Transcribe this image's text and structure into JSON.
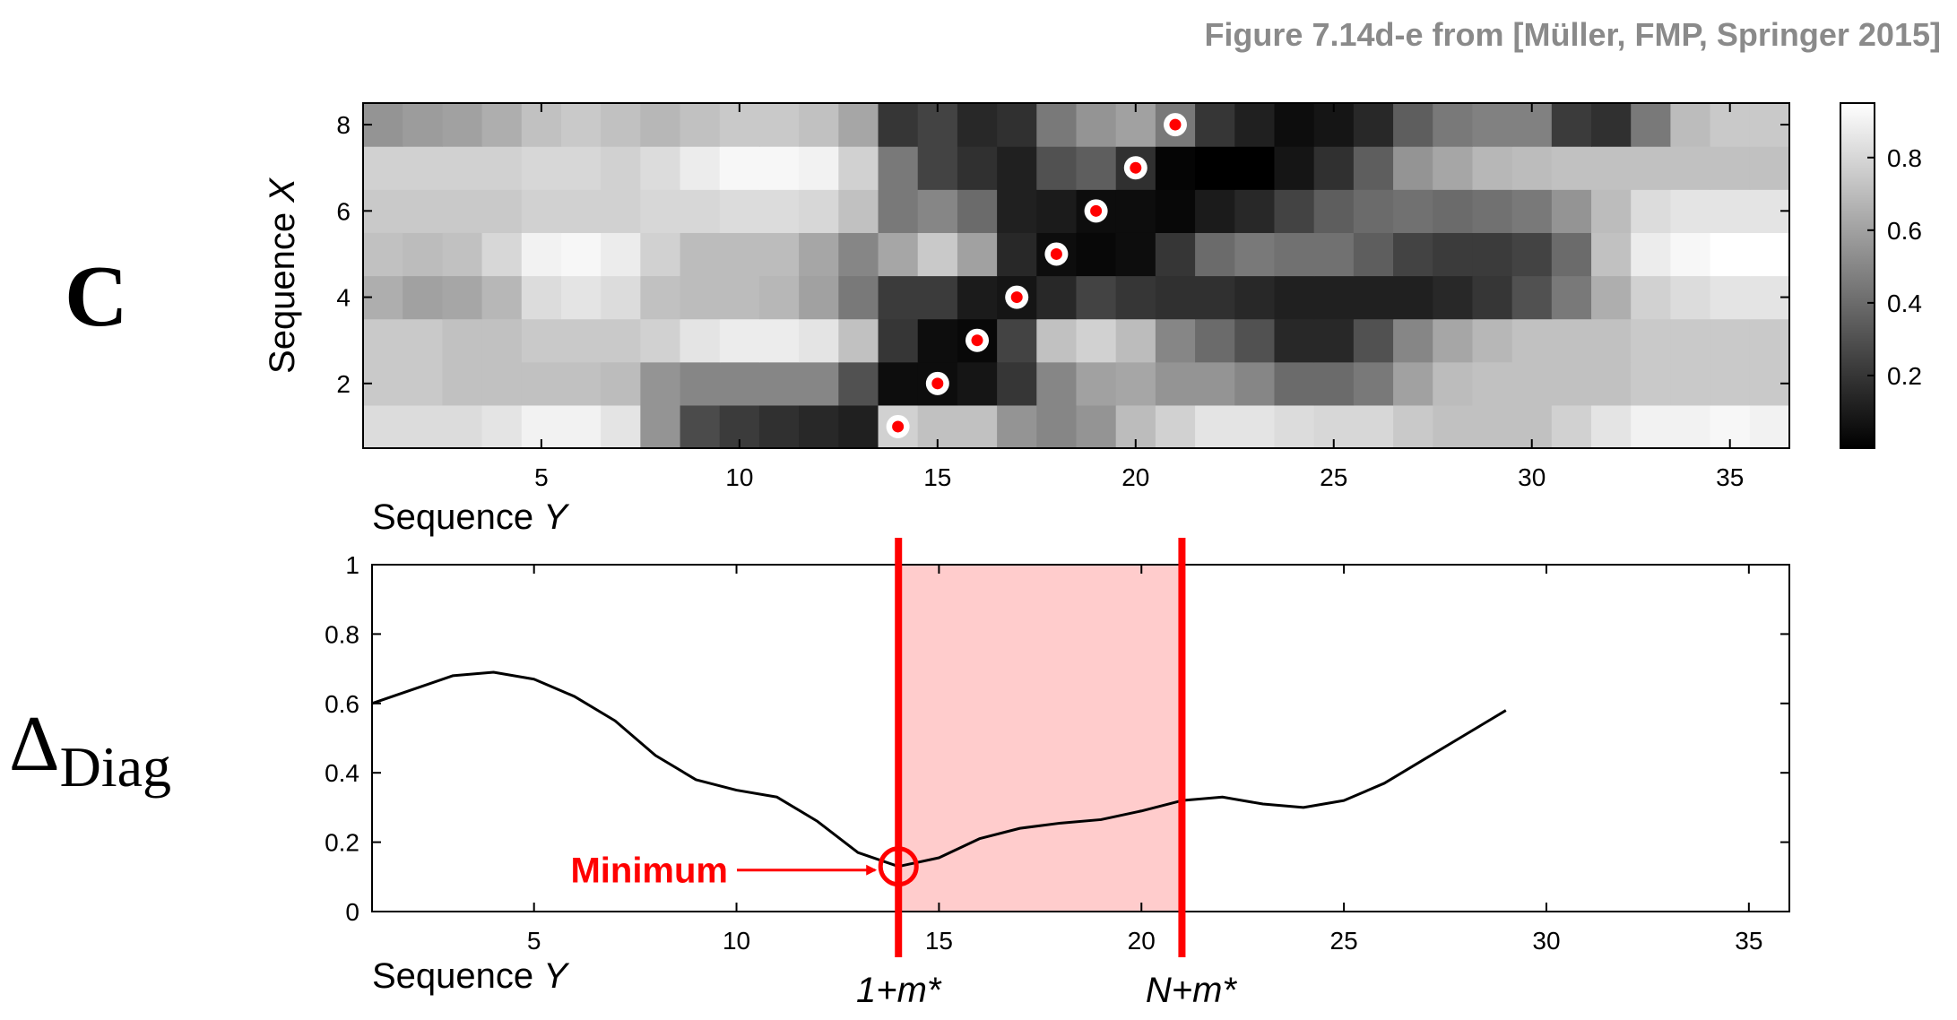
{
  "source_note": "Figure 7.14d-e from [Müller, FMP, Springer 2015]",
  "side_labels": {
    "top": "C",
    "bottom_symbol": "Δ",
    "bottom_subscript": "Diag"
  },
  "chart_data": [
    {
      "type": "heatmap",
      "xlabel": "Sequence",
      "xlabel_italic": "Y",
      "ylabel": "Sequence",
      "ylabel_italic": "X",
      "xlim": [
        0.5,
        36.5
      ],
      "ylim": [
        0.5,
        8.5
      ],
      "x_ticks": [
        5,
        10,
        15,
        20,
        25,
        30,
        35
      ],
      "y_ticks": [
        2,
        4,
        6,
        8
      ],
      "colorbar": {
        "ticks": [
          0.2,
          0.4,
          0.6,
          0.8
        ],
        "range": [
          0,
          0.95
        ],
        "colormap": "gray"
      },
      "rows": [
        [
          0.82,
          0.82,
          0.82,
          0.85,
          0.9,
          0.9,
          0.85,
          0.55,
          0.28,
          0.22,
          0.18,
          0.15,
          0.12,
          0.78,
          0.72,
          0.72,
          0.55,
          0.5,
          0.55,
          0.7,
          0.78,
          0.85,
          0.85,
          0.82,
          0.8,
          0.8,
          0.75,
          0.72,
          0.72,
          0.72,
          0.78,
          0.85,
          0.9,
          0.9,
          0.92,
          0.9
        ],
        [
          0.75,
          0.75,
          0.72,
          0.72,
          0.72,
          0.72,
          0.7,
          0.55,
          0.5,
          0.5,
          0.5,
          0.5,
          0.3,
          0.05,
          0.05,
          0.08,
          0.2,
          0.5,
          0.6,
          0.62,
          0.55,
          0.55,
          0.5,
          0.4,
          0.4,
          0.45,
          0.6,
          0.7,
          0.72,
          0.72,
          0.72,
          0.72,
          0.75,
          0.75,
          0.75,
          0.75
        ],
        [
          0.75,
          0.75,
          0.72,
          0.72,
          0.75,
          0.75,
          0.75,
          0.78,
          0.85,
          0.88,
          0.88,
          0.85,
          0.72,
          0.2,
          0.05,
          0.03,
          0.25,
          0.72,
          0.78,
          0.7,
          0.5,
          0.4,
          0.3,
          0.15,
          0.15,
          0.3,
          0.5,
          0.62,
          0.68,
          0.72,
          0.72,
          0.72,
          0.75,
          0.75,
          0.75,
          0.75
        ],
        [
          0.65,
          0.6,
          0.62,
          0.68,
          0.82,
          0.85,
          0.82,
          0.72,
          0.7,
          0.7,
          0.68,
          0.6,
          0.45,
          0.22,
          0.22,
          0.1,
          0.08,
          0.15,
          0.25,
          0.2,
          0.18,
          0.18,
          0.15,
          0.12,
          0.12,
          0.12,
          0.12,
          0.15,
          0.2,
          0.3,
          0.45,
          0.65,
          0.78,
          0.82,
          0.85,
          0.85
        ],
        [
          0.72,
          0.7,
          0.72,
          0.8,
          0.9,
          0.92,
          0.88,
          0.78,
          0.7,
          0.7,
          0.7,
          0.62,
          0.5,
          0.62,
          0.75,
          0.6,
          0.15,
          0.05,
          0.03,
          0.05,
          0.2,
          0.4,
          0.45,
          0.42,
          0.42,
          0.35,
          0.25,
          0.22,
          0.22,
          0.25,
          0.4,
          0.72,
          0.88,
          0.92,
          0.95,
          0.95
        ],
        [
          0.75,
          0.75,
          0.75,
          0.75,
          0.78,
          0.78,
          0.78,
          0.8,
          0.8,
          0.82,
          0.82,
          0.8,
          0.72,
          0.45,
          0.5,
          0.4,
          0.12,
          0.1,
          0.05,
          0.05,
          0.03,
          0.1,
          0.15,
          0.25,
          0.35,
          0.4,
          0.42,
          0.4,
          0.42,
          0.45,
          0.55,
          0.7,
          0.82,
          0.85,
          0.85,
          0.85
        ],
        [
          0.78,
          0.78,
          0.78,
          0.78,
          0.8,
          0.8,
          0.78,
          0.82,
          0.88,
          0.92,
          0.92,
          0.9,
          0.78,
          0.45,
          0.25,
          0.18,
          0.12,
          0.3,
          0.35,
          0.18,
          0.02,
          0.0,
          0.0,
          0.08,
          0.18,
          0.35,
          0.55,
          0.62,
          0.68,
          0.7,
          0.72,
          0.72,
          0.72,
          0.72,
          0.72,
          0.72
        ],
        [
          0.55,
          0.58,
          0.6,
          0.65,
          0.72,
          0.75,
          0.72,
          0.68,
          0.72,
          0.75,
          0.75,
          0.72,
          0.62,
          0.2,
          0.25,
          0.15,
          0.18,
          0.45,
          0.55,
          0.6,
          0.45,
          0.2,
          0.12,
          0.05,
          0.08,
          0.15,
          0.35,
          0.45,
          0.48,
          0.48,
          0.22,
          0.18,
          0.45,
          0.7,
          0.75,
          0.75
        ]
      ],
      "path_points": [
        [
          14,
          1
        ],
        [
          15,
          2
        ],
        [
          16,
          3
        ],
        [
          17,
          4
        ],
        [
          18,
          5
        ],
        [
          19,
          6
        ],
        [
          20,
          7
        ],
        [
          21,
          8
        ]
      ]
    },
    {
      "type": "line",
      "xlabel": "Sequence",
      "xlabel_italic": "Y",
      "xlim": [
        1,
        36
      ],
      "ylim": [
        0,
        1
      ],
      "x_ticks": [
        5,
        10,
        15,
        20,
        25,
        30,
        35
      ],
      "y_ticks": [
        0,
        0.2,
        0.4,
        0.6,
        0.8,
        1
      ],
      "y_tick_labels": [
        "0",
        "0.2",
        "0.4",
        "0.6",
        "0.8",
        "1"
      ],
      "x": [
        1,
        2,
        3,
        4,
        5,
        6,
        7,
        8,
        9,
        10,
        11,
        12,
        13,
        14,
        15,
        16,
        17,
        18,
        19,
        20,
        21,
        22,
        23,
        24,
        25,
        26,
        27,
        28,
        29
      ],
      "y": [
        0.6,
        0.64,
        0.68,
        0.69,
        0.67,
        0.62,
        0.55,
        0.45,
        0.38,
        0.35,
        0.33,
        0.26,
        0.17,
        0.13,
        0.155,
        0.21,
        0.24,
        0.255,
        0.265,
        0.29,
        0.32,
        0.33,
        0.31,
        0.3,
        0.32,
        0.37,
        0.44,
        0.51,
        0.58
      ],
      "minimum": {
        "x": 14,
        "y": 0.13,
        "label": "Minimum"
      },
      "highlight": {
        "x_start": 14,
        "x_end": 21,
        "color": "#ffcccc"
      },
      "markers": [
        {
          "x": 14,
          "label_main": "1+m",
          "label_star": "*"
        },
        {
          "x": 21,
          "label_main": "N+m",
          "label_star": "*"
        }
      ],
      "accent_color": "#ff0000"
    }
  ]
}
